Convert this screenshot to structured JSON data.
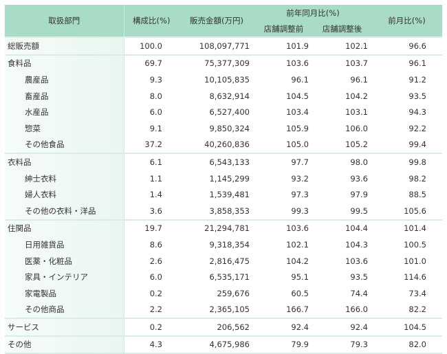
{
  "header": {
    "dept": "取扱部門",
    "share": "構成比(%)",
    "sales": "販売金額(万円)",
    "yoy": "前年同月比(%)",
    "yoy_before": "店舗調整前",
    "yoy_after": "店舗調整後",
    "mom": "前月比(%)"
  },
  "rows": [
    {
      "name": "総販売額",
      "share": "100.0",
      "sales": "108,097,771",
      "before": "101.9",
      "after": "102.1",
      "mom": "96.6",
      "level": 0,
      "group": true
    },
    {
      "name": "食料品",
      "share": "69.7",
      "sales": "75,377,309",
      "before": "103.6",
      "after": "103.7",
      "mom": "96.1",
      "level": 0,
      "group": true
    },
    {
      "name": "農産品",
      "share": "9.3",
      "sales": "10,105,835",
      "before": "96.1",
      "after": "96.1",
      "mom": "91.2",
      "level": 1
    },
    {
      "name": "畜産品",
      "share": "8.0",
      "sales": "8,632,914",
      "before": "104.5",
      "after": "104.2",
      "mom": "93.5",
      "level": 1
    },
    {
      "name": "水産品",
      "share": "6.0",
      "sales": "6,527,400",
      "before": "103.4",
      "after": "103.1",
      "mom": "94.3",
      "level": 1
    },
    {
      "name": "惣菜",
      "share": "9.1",
      "sales": "9,850,324",
      "before": "105.9",
      "after": "106.0",
      "mom": "92.2",
      "level": 1
    },
    {
      "name": "その他食品",
      "share": "37.2",
      "sales": "40,260,836",
      "before": "105.0",
      "after": "105.2",
      "mom": "99.4",
      "level": 1
    },
    {
      "name": "衣料品",
      "share": "6.1",
      "sales": "6,543,133",
      "before": "97.7",
      "after": "98.0",
      "mom": "99.8",
      "level": 0,
      "group": true
    },
    {
      "name": "紳士衣料",
      "share": "1.1",
      "sales": "1,145,299",
      "before": "93.2",
      "after": "93.6",
      "mom": "98.2",
      "level": 1
    },
    {
      "name": "婦人衣料",
      "share": "1.4",
      "sales": "1,539,481",
      "before": "97.3",
      "after": "97.9",
      "mom": "88.5",
      "level": 1
    },
    {
      "name": "その他の衣料・洋品",
      "share": "3.6",
      "sales": "3,858,353",
      "before": "99.3",
      "after": "99.5",
      "mom": "105.6",
      "level": 1
    },
    {
      "name": "住関品",
      "share": "19.7",
      "sales": "21,294,781",
      "before": "103.6",
      "after": "104.4",
      "mom": "101.4",
      "level": 0,
      "group": true
    },
    {
      "name": "日用雑貨品",
      "share": "8.6",
      "sales": "9,318,354",
      "before": "102.1",
      "after": "104.3",
      "mom": "100.5",
      "level": 1
    },
    {
      "name": "医薬・化粧品",
      "share": "2.6",
      "sales": "2,816,475",
      "before": "104.2",
      "after": "103.6",
      "mom": "101.0",
      "level": 1
    },
    {
      "name": "家具・インテリア",
      "share": "6.0",
      "sales": "6,535,171",
      "before": "95.1",
      "after": "93.5",
      "mom": "114.6",
      "level": 1
    },
    {
      "name": "家電製品",
      "share": "0.2",
      "sales": "259,676",
      "before": "60.5",
      "after": "74.4",
      "mom": "73.4",
      "level": 1
    },
    {
      "name": "その他商品",
      "share": "2.2",
      "sales": "2,365,105",
      "before": "166.7",
      "after": "166.0",
      "mom": "82.2",
      "level": 1
    },
    {
      "name": "サービス",
      "share": "0.2",
      "sales": "206,562",
      "before": "92.4",
      "after": "92.4",
      "mom": "104.5",
      "level": 0,
      "group": true
    },
    {
      "name": "その他",
      "share": "4.3",
      "sales": "4,675,986",
      "before": "79.9",
      "after": "79.3",
      "mom": "82.0",
      "level": 0,
      "group": true
    }
  ]
}
